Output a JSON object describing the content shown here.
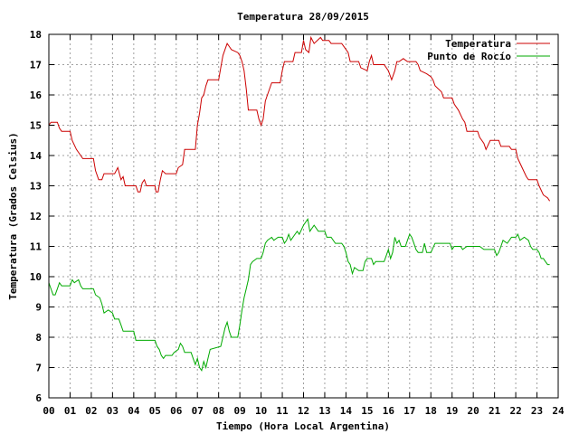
{
  "chart_data": {
    "type": "line",
    "title": "Temperatura 28/09/2015",
    "xlabel": "Tiempo (Hora Local Argentina)",
    "ylabel": "Temperatura (Grados Celsius)",
    "xlim": [
      0,
      24
    ],
    "ylim": [
      6,
      18
    ],
    "x_ticks": [
      "00",
      "01",
      "02",
      "03",
      "04",
      "05",
      "06",
      "07",
      "08",
      "09",
      "10",
      "11",
      "12",
      "13",
      "14",
      "15",
      "16",
      "17",
      "18",
      "19",
      "20",
      "21",
      "22",
      "23",
      "24"
    ],
    "y_ticks": [
      "6",
      "7",
      "8",
      "9",
      "10",
      "11",
      "12",
      "13",
      "14",
      "15",
      "16",
      "17",
      "18"
    ],
    "grid": true,
    "legend_position": "top-right",
    "series": [
      {
        "name": "Temperatura",
        "color": "#cc0000",
        "points": [
          [
            0,
            15.0
          ],
          [
            0.1,
            15.1
          ],
          [
            0.4,
            15.1
          ],
          [
            0.5,
            14.9
          ],
          [
            0.6,
            14.8
          ],
          [
            1.0,
            14.8
          ],
          [
            1.1,
            14.5
          ],
          [
            1.3,
            14.2
          ],
          [
            1.5,
            14.0
          ],
          [
            1.6,
            13.9
          ],
          [
            2.1,
            13.9
          ],
          [
            2.2,
            13.5
          ],
          [
            2.35,
            13.2
          ],
          [
            2.5,
            13.2
          ],
          [
            2.6,
            13.4
          ],
          [
            3.1,
            13.4
          ],
          [
            3.25,
            13.6
          ],
          [
            3.4,
            13.2
          ],
          [
            3.5,
            13.3
          ],
          [
            3.6,
            13.0
          ],
          [
            4.1,
            13.0
          ],
          [
            4.2,
            12.8
          ],
          [
            4.3,
            12.8
          ],
          [
            4.4,
            13.1
          ],
          [
            4.5,
            13.2
          ],
          [
            4.6,
            13.0
          ],
          [
            5.0,
            13.0
          ],
          [
            5.05,
            12.8
          ],
          [
            5.15,
            12.8
          ],
          [
            5.25,
            13.2
          ],
          [
            5.35,
            13.5
          ],
          [
            5.5,
            13.4
          ],
          [
            6.0,
            13.4
          ],
          [
            6.1,
            13.6
          ],
          [
            6.3,
            13.7
          ],
          [
            6.4,
            14.2
          ],
          [
            6.9,
            14.2
          ],
          [
            7.0,
            15.0
          ],
          [
            7.1,
            15.4
          ],
          [
            7.2,
            15.9
          ],
          [
            7.3,
            16.0
          ],
          [
            7.4,
            16.3
          ],
          [
            7.5,
            16.5
          ],
          [
            8.0,
            16.5
          ],
          [
            8.1,
            16.9
          ],
          [
            8.2,
            17.3
          ],
          [
            8.3,
            17.5
          ],
          [
            8.4,
            17.7
          ],
          [
            8.5,
            17.6
          ],
          [
            8.6,
            17.5
          ],
          [
            8.9,
            17.4
          ],
          [
            9.0,
            17.3
          ],
          [
            9.1,
            17.1
          ],
          [
            9.2,
            16.8
          ],
          [
            9.3,
            16.2
          ],
          [
            9.4,
            15.5
          ],
          [
            9.8,
            15.5
          ],
          [
            9.9,
            15.2
          ],
          [
            10.0,
            15.0
          ],
          [
            10.1,
            15.2
          ],
          [
            10.2,
            15.8
          ],
          [
            10.3,
            16.0
          ],
          [
            10.5,
            16.4
          ],
          [
            10.9,
            16.4
          ],
          [
            11.0,
            16.8
          ],
          [
            11.1,
            17.1
          ],
          [
            11.5,
            17.1
          ],
          [
            11.6,
            17.4
          ],
          [
            11.9,
            17.4
          ],
          [
            12.0,
            17.8
          ],
          [
            12.1,
            17.5
          ],
          [
            12.25,
            17.4
          ],
          [
            12.35,
            17.9
          ],
          [
            12.5,
            17.7
          ],
          [
            12.8,
            17.9
          ],
          [
            12.9,
            17.8
          ],
          [
            13.2,
            17.8
          ],
          [
            13.3,
            17.7
          ],
          [
            13.8,
            17.7
          ],
          [
            13.9,
            17.6
          ],
          [
            14.1,
            17.4
          ],
          [
            14.2,
            17.1
          ],
          [
            14.6,
            17.1
          ],
          [
            14.7,
            16.9
          ],
          [
            15.0,
            16.8
          ],
          [
            15.1,
            17.1
          ],
          [
            15.2,
            17.3
          ],
          [
            15.3,
            17.0
          ],
          [
            15.5,
            17.0
          ],
          [
            15.8,
            17.0
          ],
          [
            16.0,
            16.8
          ],
          [
            16.15,
            16.5
          ],
          [
            16.3,
            16.8
          ],
          [
            16.4,
            17.1
          ],
          [
            16.5,
            17.1
          ],
          [
            16.7,
            17.2
          ],
          [
            16.9,
            17.1
          ],
          [
            17.3,
            17.1
          ],
          [
            17.4,
            17.0
          ],
          [
            17.5,
            16.8
          ],
          [
            17.8,
            16.7
          ],
          [
            18.0,
            16.6
          ],
          [
            18.1,
            16.5
          ],
          [
            18.2,
            16.3
          ],
          [
            18.5,
            16.1
          ],
          [
            18.6,
            15.9
          ],
          [
            19.0,
            15.9
          ],
          [
            19.1,
            15.7
          ],
          [
            19.3,
            15.5
          ],
          [
            19.5,
            15.2
          ],
          [
            19.6,
            15.1
          ],
          [
            19.7,
            14.8
          ],
          [
            20.2,
            14.8
          ],
          [
            20.3,
            14.6
          ],
          [
            20.5,
            14.4
          ],
          [
            20.6,
            14.2
          ],
          [
            20.8,
            14.5
          ],
          [
            21.2,
            14.5
          ],
          [
            21.3,
            14.3
          ],
          [
            21.7,
            14.3
          ],
          [
            21.8,
            14.2
          ],
          [
            22.0,
            14.2
          ],
          [
            22.1,
            13.9
          ],
          [
            22.3,
            13.6
          ],
          [
            22.5,
            13.3
          ],
          [
            22.6,
            13.2
          ],
          [
            23.0,
            13.2
          ],
          [
            23.1,
            13.0
          ],
          [
            23.3,
            12.7
          ],
          [
            23.5,
            12.6
          ],
          [
            23.6,
            12.5
          ]
        ]
      },
      {
        "name": "Punto de Rocío",
        "color": "#00aa00",
        "points": [
          [
            0,
            9.8
          ],
          [
            0.1,
            9.6
          ],
          [
            0.2,
            9.4
          ],
          [
            0.3,
            9.4
          ],
          [
            0.4,
            9.6
          ],
          [
            0.5,
            9.8
          ],
          [
            0.6,
            9.7
          ],
          [
            1.0,
            9.7
          ],
          [
            1.1,
            9.9
          ],
          [
            1.2,
            9.8
          ],
          [
            1.4,
            9.9
          ],
          [
            1.5,
            9.7
          ],
          [
            1.6,
            9.6
          ],
          [
            2.1,
            9.6
          ],
          [
            2.2,
            9.4
          ],
          [
            2.4,
            9.3
          ],
          [
            2.5,
            9.1
          ],
          [
            2.6,
            8.8
          ],
          [
            2.8,
            8.9
          ],
          [
            3.0,
            8.8
          ],
          [
            3.1,
            8.6
          ],
          [
            3.3,
            8.6
          ],
          [
            3.4,
            8.4
          ],
          [
            3.5,
            8.2
          ],
          [
            4.0,
            8.2
          ],
          [
            4.1,
            7.9
          ],
          [
            5.0,
            7.9
          ],
          [
            5.1,
            7.7
          ],
          [
            5.2,
            7.6
          ],
          [
            5.3,
            7.4
          ],
          [
            5.4,
            7.3
          ],
          [
            5.5,
            7.4
          ],
          [
            5.8,
            7.4
          ],
          [
            5.9,
            7.5
          ],
          [
            6.1,
            7.6
          ],
          [
            6.2,
            7.8
          ],
          [
            6.3,
            7.7
          ],
          [
            6.4,
            7.5
          ],
          [
            6.7,
            7.5
          ],
          [
            6.8,
            7.3
          ],
          [
            6.9,
            7.1
          ],
          [
            7.0,
            7.3
          ],
          [
            7.1,
            7.0
          ],
          [
            7.2,
            6.9
          ],
          [
            7.3,
            7.2
          ],
          [
            7.4,
            7.0
          ],
          [
            7.5,
            7.3
          ],
          [
            7.6,
            7.6
          ],
          [
            8.1,
            7.7
          ],
          [
            8.2,
            8.0
          ],
          [
            8.3,
            8.3
          ],
          [
            8.4,
            8.5
          ],
          [
            8.5,
            8.2
          ],
          [
            8.6,
            8.0
          ],
          [
            8.9,
            8.0
          ],
          [
            9.0,
            8.4
          ],
          [
            9.1,
            8.9
          ],
          [
            9.2,
            9.3
          ],
          [
            9.3,
            9.6
          ],
          [
            9.4,
            9.9
          ],
          [
            9.5,
            10.4
          ],
          [
            9.6,
            10.5
          ],
          [
            9.8,
            10.6
          ],
          [
            10.0,
            10.6
          ],
          [
            10.1,
            10.8
          ],
          [
            10.2,
            11.1
          ],
          [
            10.3,
            11.2
          ],
          [
            10.5,
            11.3
          ],
          [
            10.6,
            11.2
          ],
          [
            10.8,
            11.3
          ],
          [
            11.0,
            11.3
          ],
          [
            11.1,
            11.1
          ],
          [
            11.2,
            11.2
          ],
          [
            11.3,
            11.4
          ],
          [
            11.4,
            11.2
          ],
          [
            11.6,
            11.4
          ],
          [
            11.7,
            11.5
          ],
          [
            11.8,
            11.4
          ],
          [
            12.0,
            11.7
          ],
          [
            12.2,
            11.9
          ],
          [
            12.3,
            11.5
          ],
          [
            12.5,
            11.7
          ],
          [
            12.7,
            11.5
          ],
          [
            13.0,
            11.5
          ],
          [
            13.1,
            11.3
          ],
          [
            13.3,
            11.3
          ],
          [
            13.5,
            11.1
          ],
          [
            13.8,
            11.1
          ],
          [
            13.9,
            11.0
          ],
          [
            14.0,
            10.8
          ],
          [
            14.1,
            10.5
          ],
          [
            14.2,
            10.4
          ],
          [
            14.3,
            10.1
          ],
          [
            14.4,
            10.3
          ],
          [
            14.6,
            10.2
          ],
          [
            14.8,
            10.2
          ],
          [
            14.9,
            10.5
          ],
          [
            15.0,
            10.6
          ],
          [
            15.2,
            10.6
          ],
          [
            15.3,
            10.4
          ],
          [
            15.4,
            10.5
          ],
          [
            15.8,
            10.5
          ],
          [
            15.9,
            10.7
          ],
          [
            16.0,
            10.9
          ],
          [
            16.1,
            10.6
          ],
          [
            16.2,
            10.8
          ],
          [
            16.3,
            11.3
          ],
          [
            16.4,
            11.1
          ],
          [
            16.5,
            11.2
          ],
          [
            16.6,
            11.0
          ],
          [
            16.8,
            11.0
          ],
          [
            16.9,
            11.2
          ],
          [
            17.0,
            11.4
          ],
          [
            17.1,
            11.3
          ],
          [
            17.2,
            11.1
          ],
          [
            17.3,
            10.9
          ],
          [
            17.4,
            10.8
          ],
          [
            17.6,
            10.8
          ],
          [
            17.7,
            11.1
          ],
          [
            17.8,
            10.8
          ],
          [
            18.0,
            10.8
          ],
          [
            18.2,
            11.1
          ],
          [
            18.3,
            11.1
          ],
          [
            18.6,
            11.1
          ],
          [
            18.9,
            11.1
          ],
          [
            19.0,
            10.9
          ],
          [
            19.1,
            11.0
          ],
          [
            19.4,
            11.0
          ],
          [
            19.5,
            10.9
          ],
          [
            19.7,
            11.0
          ],
          [
            20.0,
            11.0
          ],
          [
            20.3,
            11.0
          ],
          [
            20.5,
            10.9
          ],
          [
            21.0,
            10.9
          ],
          [
            21.1,
            10.7
          ],
          [
            21.2,
            10.8
          ],
          [
            21.3,
            11.0
          ],
          [
            21.4,
            11.2
          ],
          [
            21.6,
            11.1
          ],
          [
            21.8,
            11.3
          ],
          [
            22.0,
            11.3
          ],
          [
            22.1,
            11.4
          ],
          [
            22.2,
            11.2
          ],
          [
            22.4,
            11.3
          ],
          [
            22.6,
            11.2
          ],
          [
            22.7,
            11.0
          ],
          [
            22.8,
            10.9
          ],
          [
            23.0,
            10.9
          ],
          [
            23.1,
            10.8
          ],
          [
            23.2,
            10.6
          ],
          [
            23.3,
            10.6
          ],
          [
            23.4,
            10.5
          ],
          [
            23.5,
            10.4
          ],
          [
            23.6,
            10.4
          ]
        ]
      }
    ]
  }
}
